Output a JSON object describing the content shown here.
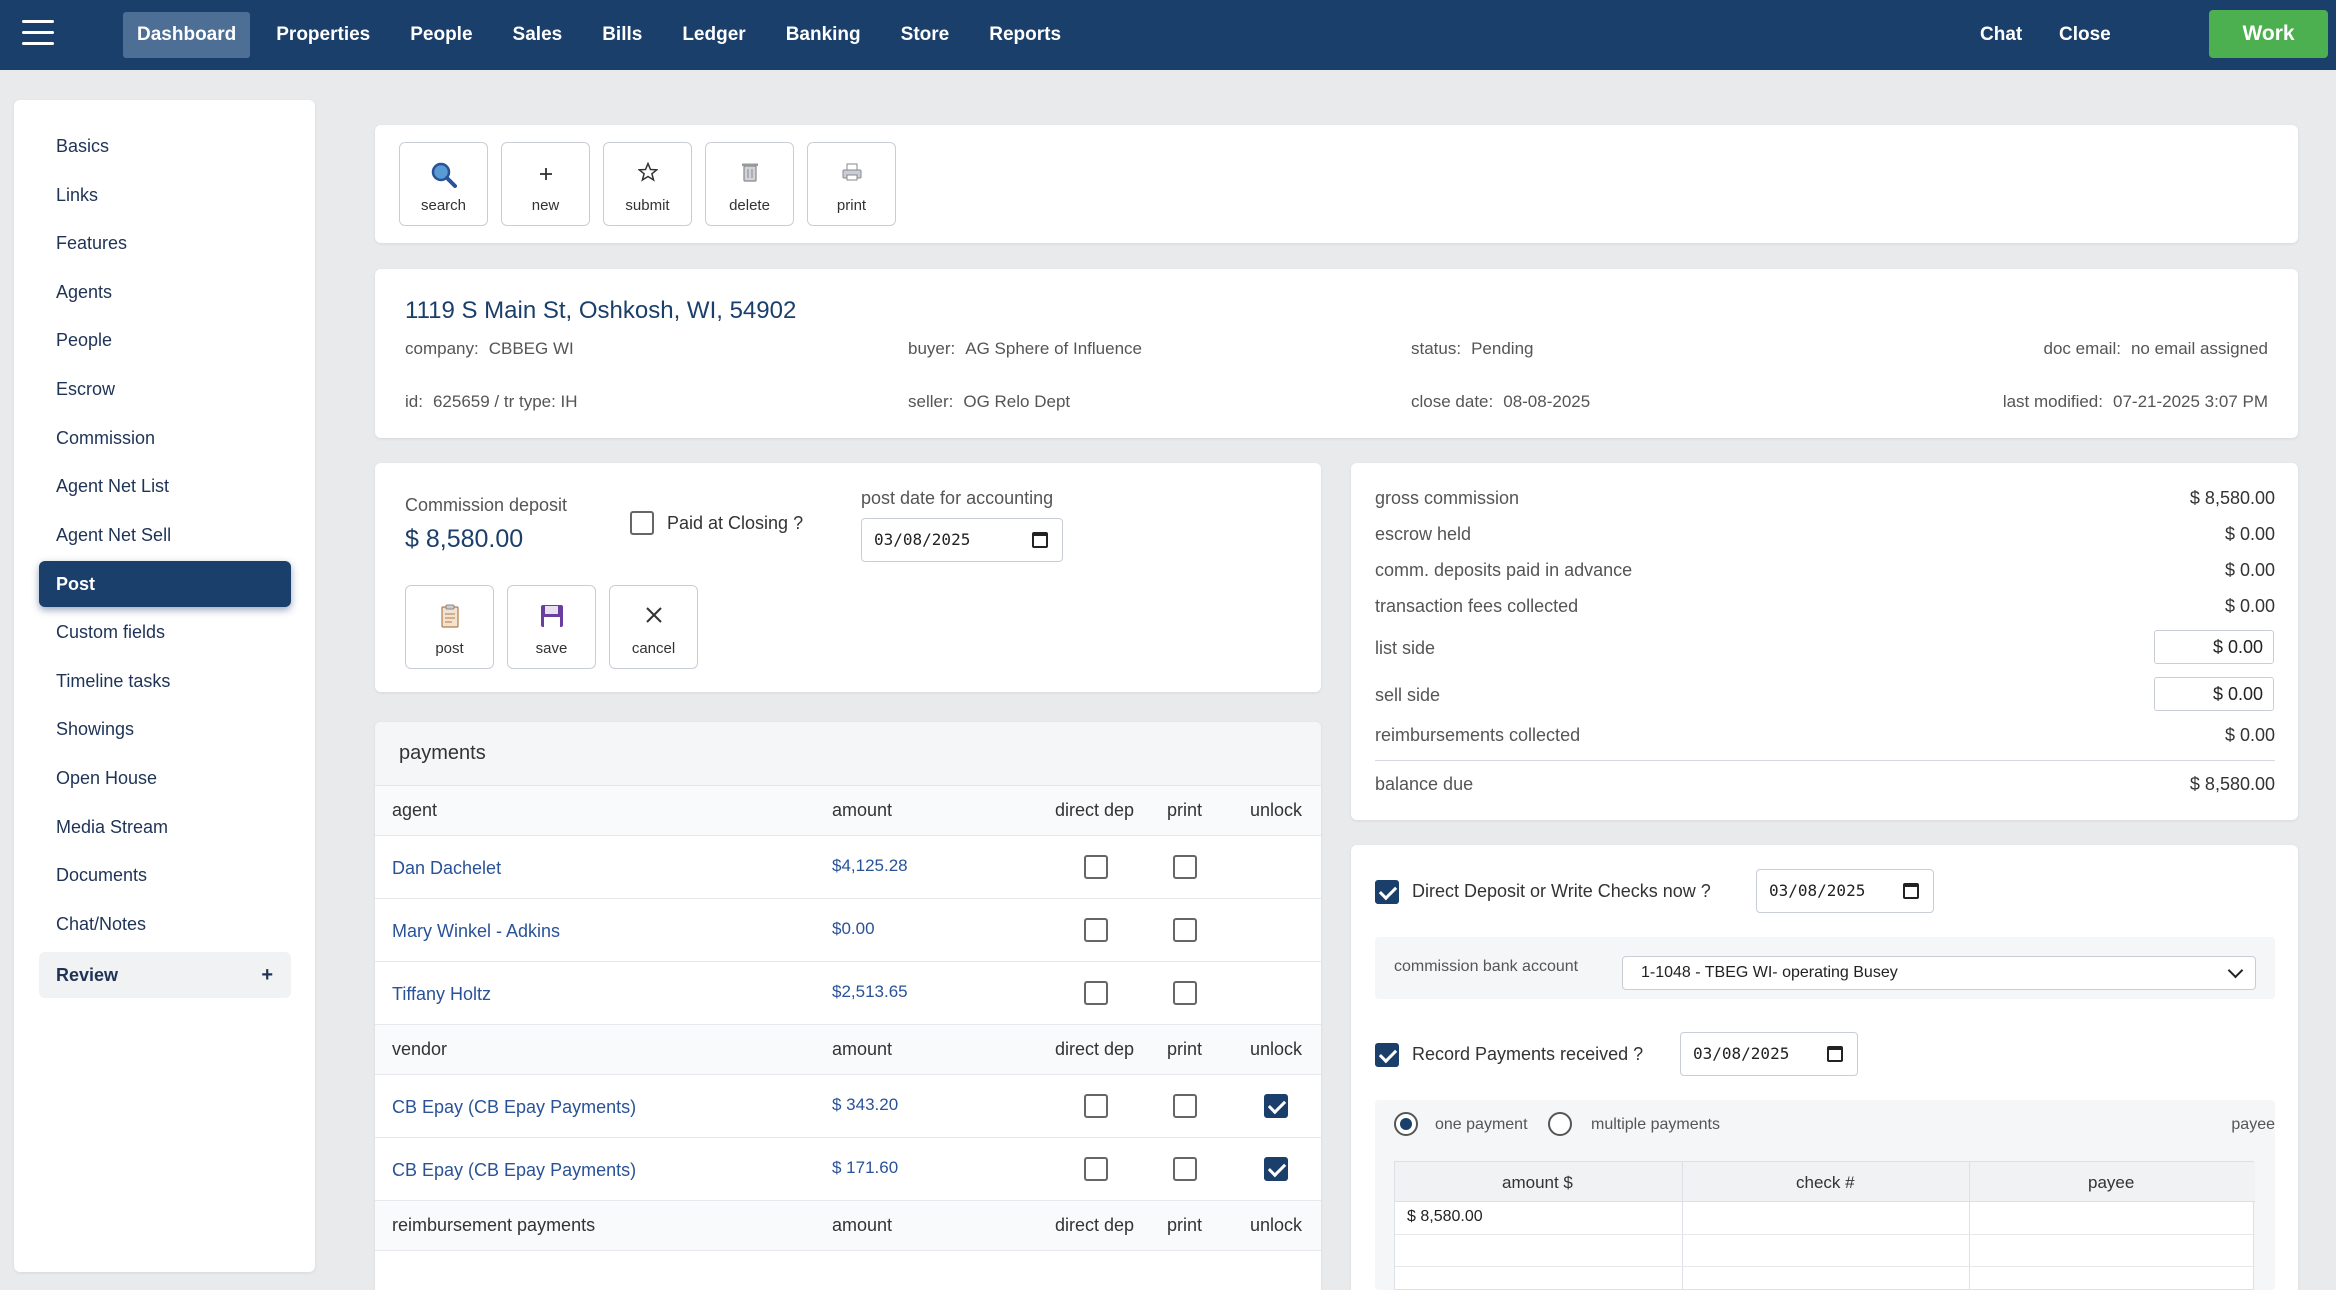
{
  "nav": {
    "items": [
      "Dashboard",
      "Properties",
      "People",
      "Sales",
      "Bills",
      "Ledger",
      "Banking",
      "Store",
      "Reports"
    ],
    "chat": "Chat",
    "close": "Close",
    "work": "Work"
  },
  "sidebar": {
    "items": [
      "Basics",
      "Links",
      "Features",
      "Agents",
      "People",
      "Escrow",
      "Commission",
      "Agent Net List",
      "Agent Net Sell",
      "Post",
      "Custom fields",
      "Timeline tasks",
      "Showings",
      "Open House",
      "Media Stream",
      "Documents",
      "Chat/Notes",
      "Review"
    ],
    "active": "Post",
    "review_plus": "+"
  },
  "toolbar": {
    "search": "search",
    "new": "new",
    "submit": "submit",
    "delete": "delete",
    "print": "print"
  },
  "property": {
    "address": "1119 S Main St, Oshkosh, WI, 54902",
    "company_label": "company:",
    "company": "CBBEG WI",
    "buyer_label": "buyer:",
    "buyer": "AG Sphere of Influence",
    "status_label": "status:",
    "status": "Pending",
    "doc_email_label": "doc email:",
    "doc_email": "no email assigned",
    "id_label": "id:",
    "id": "625659 / tr type: IH",
    "seller_label": "seller:",
    "seller": "OG Relo Dept",
    "close_date_label": "close date:",
    "close_date": "08-08-2025",
    "last_modified_label": "last modified:",
    "last_modified": "07-21-2025 3:07 PM"
  },
  "deposit": {
    "label": "Commission deposit",
    "amount": "$ 8,580.00",
    "paid_at_closing": "Paid at Closing ?",
    "post_date_label": "post date for accounting",
    "post_date": "03/08/2025",
    "post": "post",
    "save": "save",
    "cancel": "cancel"
  },
  "payments": {
    "title": "payments",
    "agent_header": {
      "name": "agent",
      "amount": "amount",
      "direct_dep": "direct dep",
      "print": "print",
      "unlock": "unlock"
    },
    "agents": [
      {
        "name": "Dan Dachelet",
        "amount": "$4,125.28",
        "direct_dep": false,
        "print": false
      },
      {
        "name": "Mary Winkel - Adkins",
        "amount": "$0.00",
        "direct_dep": false,
        "print": false
      },
      {
        "name": "Tiffany Holtz",
        "amount": "$2,513.65",
        "direct_dep": false,
        "print": false
      }
    ],
    "vendor_header": {
      "name": "vendor",
      "amount": "amount",
      "direct_dep": "direct dep",
      "print": "print",
      "unlock": "unlock"
    },
    "vendors": [
      {
        "name": "CB Epay (CB Epay Payments)",
        "amount": "$ 343.20",
        "direct_dep": false,
        "print": false,
        "unlock": true
      },
      {
        "name": "CB Epay (CB Epay Payments)",
        "amount": "$ 171.60",
        "direct_dep": false,
        "print": false,
        "unlock": true
      }
    ],
    "reimb_header": {
      "name": "reimbursement payments",
      "amount": "amount",
      "direct_dep": "direct dep",
      "print": "print",
      "unlock": "unlock"
    }
  },
  "summary": {
    "gross_commission_label": "gross commission",
    "gross_commission": "$ 8,580.00",
    "escrow_held_label": "escrow held",
    "escrow_held": "$ 0.00",
    "comm_deposits_label": "comm. deposits paid in advance",
    "comm_deposits": "$ 0.00",
    "transaction_fees_label": "transaction fees collected",
    "transaction_fees": "$ 0.00",
    "list_side_label": "list side",
    "list_side": "$ 0.00",
    "sell_side_label": "sell side",
    "sell_side": "$ 0.00",
    "reimbursements_label": "reimbursements collected",
    "reimbursements": "$ 0.00",
    "balance_due_label": "balance due",
    "balance_due": "$ 8,580.00"
  },
  "checks": {
    "direct_deposit_label": "Direct Deposit or Write Checks now ?",
    "direct_deposit_checked": true,
    "direct_deposit_date": "03/08/2025",
    "bank_account_label": "commission bank account",
    "bank_account": "1-1048 - TBEG WI- operating Busey",
    "record_payments_label": "Record Payments received ?",
    "record_payments_checked": true,
    "record_payments_date": "03/08/2025",
    "one_payment": "one payment",
    "multiple_payments": "multiple payments",
    "payee_label": "payee",
    "col_amount": "amount $",
    "col_check": "check #",
    "col_payee": "payee",
    "row_amount": "$ 8,580.00"
  },
  "colors": {
    "nav_bg": "#1b3f6b",
    "work_btn": "#4caf50",
    "link": "#2a5298"
  }
}
